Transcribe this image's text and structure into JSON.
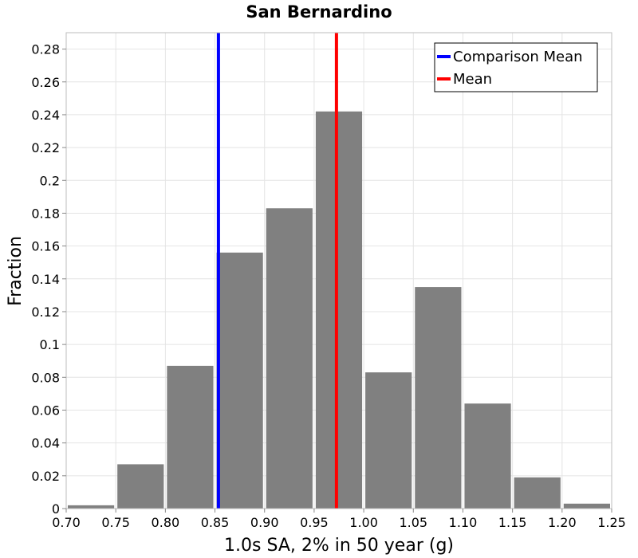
{
  "chart_data": {
    "type": "bar",
    "title": "San Bernardino",
    "xlabel": "1.0s SA, 2% in 50 year (g)",
    "ylabel": "Fraction",
    "xlim": [
      0.7,
      1.25
    ],
    "ylim": [
      0,
      0.29
    ],
    "bin_width": 0.05,
    "x_ticks": [
      "0.70",
      "0.75",
      "0.80",
      "0.85",
      "0.90",
      "0.95",
      "1.00",
      "1.05",
      "1.10",
      "1.15",
      "1.20",
      "1.25"
    ],
    "y_ticks": [
      "0",
      "0.02",
      "0.04",
      "0.06",
      "0.08",
      "0.1",
      "0.12",
      "0.14",
      "0.16",
      "0.18",
      "0.2",
      "0.22",
      "0.24",
      "0.26",
      "0.28"
    ],
    "bins": [
      {
        "x": 0.7,
        "value": 0.002
      },
      {
        "x": 0.75,
        "value": 0.027
      },
      {
        "x": 0.8,
        "value": 0.087
      },
      {
        "x": 0.85,
        "value": 0.156
      },
      {
        "x": 0.9,
        "value": 0.183
      },
      {
        "x": 0.95,
        "value": 0.242
      },
      {
        "x": 1.0,
        "value": 0.083
      },
      {
        "x": 1.05,
        "value": 0.135
      },
      {
        "x": 1.1,
        "value": 0.064
      },
      {
        "x": 1.15,
        "value": 0.019
      },
      {
        "x": 1.2,
        "value": 0.003
      }
    ],
    "vertical_lines": [
      {
        "name": "Comparison Mean",
        "x": 0.8535,
        "color": "#0000ff"
      },
      {
        "name": "Mean",
        "x": 0.9725,
        "color": "#ff0000"
      }
    ],
    "bar_color": "#808080",
    "grid": true,
    "legend_position": "top-right"
  }
}
